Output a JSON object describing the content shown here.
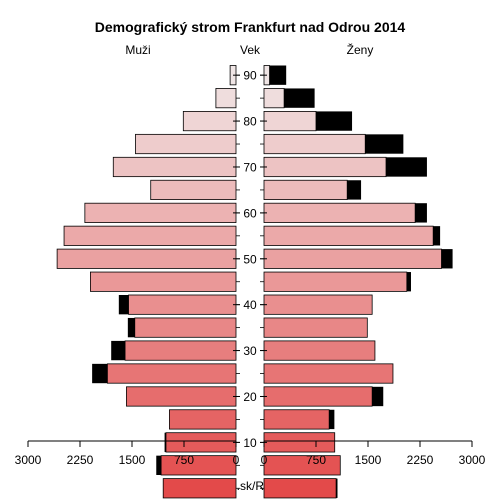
{
  "chart_data": {
    "type": "bar",
    "title": "Demografický strom Frankfurt nad Odrou 2014",
    "left_header": "Muži",
    "center_header": "Vek",
    "right_header": "Ženy",
    "footer": "www.iz.sk/RDE403",
    "x_ticks_left": [
      "3000",
      "2250",
      "1500",
      "750",
      "0"
    ],
    "x_ticks_right": [
      "0",
      "750",
      "1500",
      "2250",
      "3000"
    ],
    "xlim": [
      0,
      3000
    ],
    "age_ticks": [
      "10",
      "20",
      "30",
      "40",
      "50",
      "60",
      "70",
      "80",
      "90"
    ],
    "groups": [
      "0-4",
      "5-9",
      "10-14",
      "15-19",
      "20-24",
      "25-29",
      "30-34",
      "35-39",
      "40-44",
      "45-49",
      "50-54",
      "55-59",
      "60-64",
      "65-69",
      "70-74",
      "75-79",
      "80-84",
      "85-89",
      "90+"
    ],
    "men_total": [
      1050,
      1150,
      1030,
      960,
      1580,
      2075,
      1800,
      1560,
      1690,
      2100,
      2580,
      2480,
      2180,
      1230,
      1770,
      1450,
      760,
      290,
      85
    ],
    "men_excess": [
      0,
      70,
      20,
      0,
      0,
      220,
      200,
      100,
      140,
      0,
      0,
      0,
      0,
      0,
      0,
      0,
      0,
      0,
      0
    ],
    "women_total": [
      1060,
      1100,
      1020,
      1015,
      1720,
      1860,
      1600,
      1490,
      1560,
      2120,
      2720,
      2540,
      2350,
      1400,
      2350,
      2010,
      1270,
      730,
      320
    ],
    "women_excess": [
      20,
      0,
      0,
      75,
      160,
      0,
      0,
      0,
      0,
      60,
      160,
      100,
      170,
      200,
      590,
      550,
      520,
      440,
      240
    ]
  }
}
